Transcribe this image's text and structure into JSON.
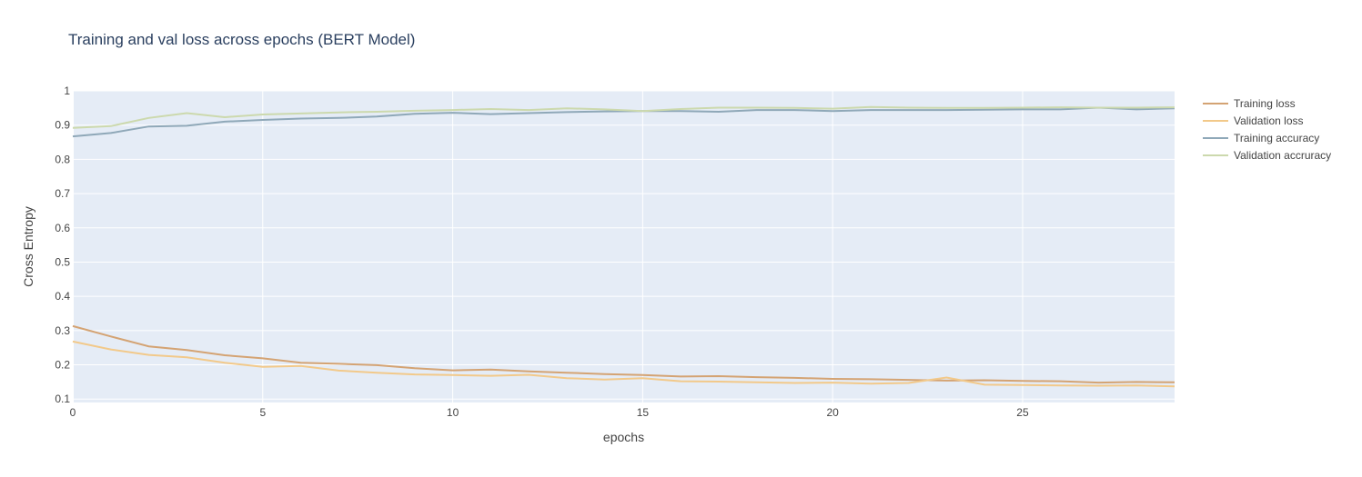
{
  "chart_data": {
    "type": "line",
    "title": "Training and val loss across epochs (BERT Model)",
    "xlabel": "epochs",
    "ylabel": "Cross Entropy",
    "xlim": [
      0,
      29
    ],
    "ylim": [
      0.09,
      1.0
    ],
    "xticks": [
      0,
      5,
      10,
      15,
      20,
      25
    ],
    "yticks": [
      0.1,
      0.2,
      0.3,
      0.4,
      0.5,
      0.6,
      0.7,
      0.8,
      0.9,
      1
    ],
    "grid": true,
    "background": "#e5ecf6",
    "legend_position": "right",
    "x": [
      0,
      1,
      2,
      3,
      4,
      5,
      6,
      7,
      8,
      9,
      10,
      11,
      12,
      13,
      14,
      15,
      16,
      17,
      18,
      19,
      20,
      21,
      22,
      23,
      24,
      25,
      26,
      27,
      28,
      29
    ],
    "series": [
      {
        "name": "Training loss",
        "color": "#d4a373",
        "values": [
          0.313,
          0.283,
          0.254,
          0.243,
          0.228,
          0.219,
          0.206,
          0.203,
          0.199,
          0.19,
          0.184,
          0.186,
          0.181,
          0.177,
          0.173,
          0.17,
          0.166,
          0.167,
          0.164,
          0.162,
          0.159,
          0.158,
          0.156,
          0.154,
          0.155,
          0.153,
          0.152,
          0.148,
          0.15,
          0.149
        ]
      },
      {
        "name": "Validation loss",
        "color": "#f2c98a",
        "values": [
          0.268,
          0.245,
          0.229,
          0.222,
          0.206,
          0.194,
          0.197,
          0.183,
          0.177,
          0.172,
          0.17,
          0.168,
          0.171,
          0.161,
          0.157,
          0.161,
          0.152,
          0.151,
          0.149,
          0.147,
          0.148,
          0.145,
          0.147,
          0.163,
          0.142,
          0.141,
          0.14,
          0.139,
          0.14,
          0.137
        ]
      },
      {
        "name": "Training accuracy",
        "color": "#8fa8b8",
        "values": [
          0.867,
          0.877,
          0.896,
          0.898,
          0.91,
          0.915,
          0.919,
          0.921,
          0.925,
          0.933,
          0.936,
          0.932,
          0.935,
          0.938,
          0.94,
          0.941,
          0.941,
          0.939,
          0.944,
          0.944,
          0.941,
          0.944,
          0.944,
          0.944,
          0.945,
          0.946,
          0.946,
          0.951,
          0.946,
          0.949
        ]
      },
      {
        "name": "Validation accruracy",
        "color": "#ccd9ad",
        "values": [
          0.892,
          0.897,
          0.921,
          0.935,
          0.923,
          0.931,
          0.934,
          0.937,
          0.939,
          0.942,
          0.944,
          0.947,
          0.944,
          0.949,
          0.946,
          0.941,
          0.947,
          0.951,
          0.951,
          0.95,
          0.948,
          0.953,
          0.951,
          0.95,
          0.95,
          0.951,
          0.952,
          0.951,
          0.951,
          0.952
        ]
      }
    ]
  }
}
